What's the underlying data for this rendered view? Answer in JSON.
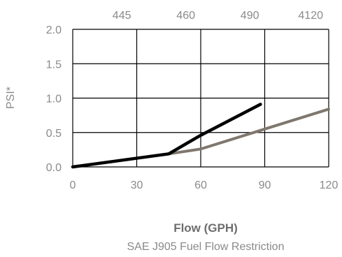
{
  "chart_data": {
    "type": "line",
    "xlabel": "Flow (GPH)",
    "ylabel": "PSI*",
    "caption": "SAE J905 Fuel Flow Restriction",
    "xlim": [
      0,
      120
    ],
    "ylim": [
      0,
      2.0
    ],
    "x_ticks": [
      "0",
      "30",
      "60",
      "90",
      "120"
    ],
    "y_ticks": [
      "0.0",
      "0.5",
      "1.0",
      "1.5",
      "2.0"
    ],
    "top_ticks": [
      "445",
      "460",
      "490",
      "4120"
    ],
    "grid": true,
    "series": [
      {
        "color": "#000000",
        "points": [
          [
            0,
            0.0
          ],
          [
            45,
            0.19
          ],
          [
            60,
            0.46
          ],
          [
            88,
            0.91
          ]
        ]
      },
      {
        "color": "#7f776e",
        "points": [
          [
            45,
            0.19
          ],
          [
            60,
            0.26
          ],
          [
            90,
            0.55
          ],
          [
            120,
            0.84
          ]
        ]
      }
    ]
  }
}
